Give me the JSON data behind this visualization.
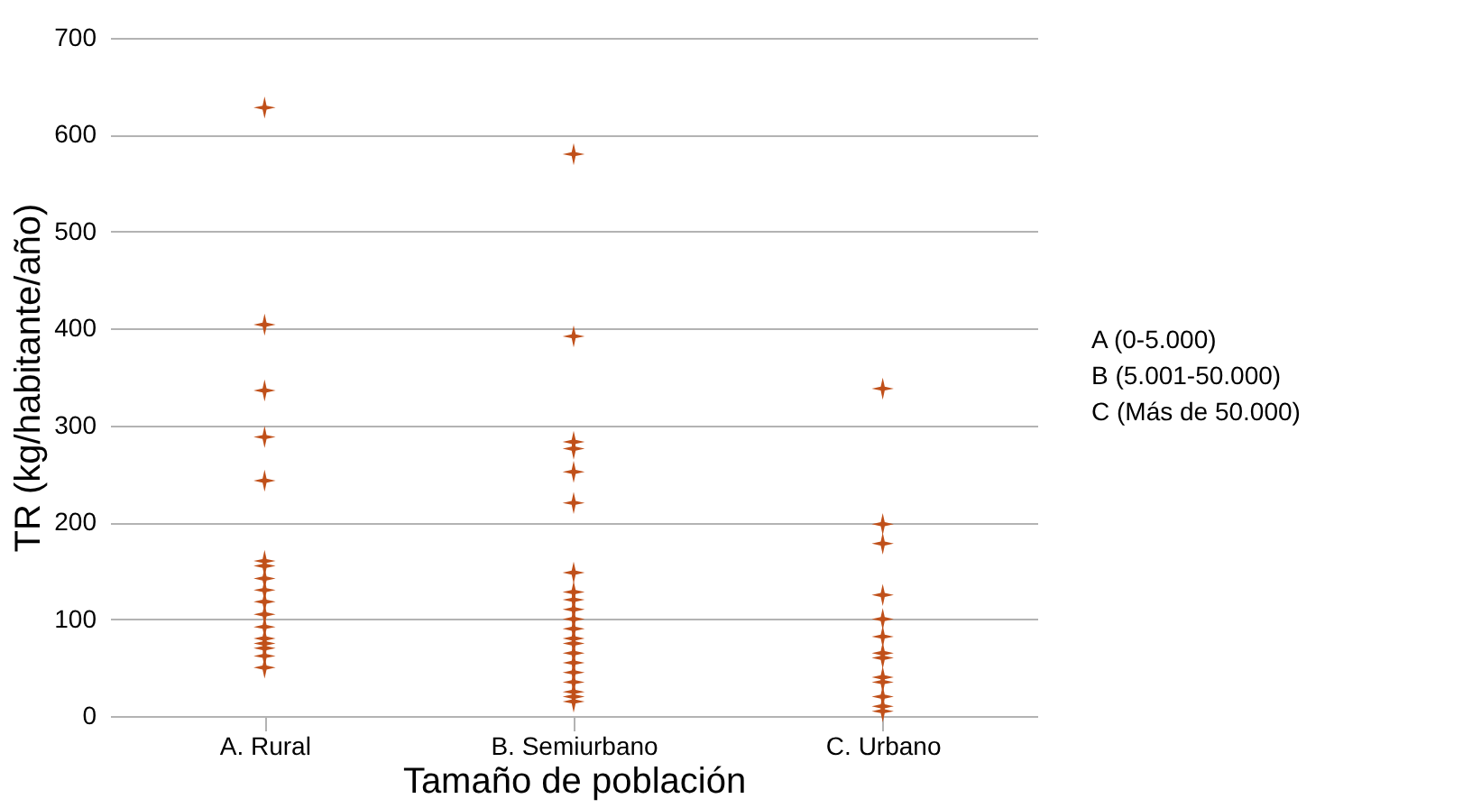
{
  "chart_data": {
    "type": "scatter",
    "xlabel": "Tamaño de población",
    "ylabel": "TR (kg/habitante/año)",
    "categories": [
      "A. Rural",
      "B. Semiurbano",
      "C. Urbano"
    ],
    "series": [
      {
        "color": "#c0501a",
        "x": [
          "A. Rural",
          "A. Rural",
          "A. Rural",
          "A. Rural",
          "A. Rural",
          "A. Rural",
          "A. Rural",
          "A. Rural",
          "A. Rural",
          "A. Rural",
          "A. Rural",
          "A. Rural",
          "A. Rural",
          "A. Rural",
          "A. Rural",
          "A. Rural",
          "A. Rural"
        ],
        "values": [
          628,
          404,
          336,
          288,
          243,
          160,
          155,
          142,
          130,
          118,
          105,
          92,
          80,
          75,
          70,
          62,
          50
        ]
      },
      {
        "color": "#c0501a",
        "x": [
          "B. Semiurbano",
          "B. Semiurbano",
          "B. Semiurbano",
          "B. Semiurbano",
          "B. Semiurbano",
          "B. Semiurbano",
          "B. Semiurbano",
          "B. Semiurbano",
          "B. Semiurbano",
          "B. Semiurbano",
          "B. Semiurbano",
          "B. Semiurbano",
          "B. Semiurbano",
          "B. Semiurbano",
          "B. Semiurbano",
          "B. Semiurbano",
          "B. Semiurbano",
          "B. Semiurbano",
          "B. Semiurbano",
          "B. Semiurbano",
          "B. Semiurbano"
        ],
        "values": [
          580,
          392,
          283,
          276,
          252,
          220,
          148,
          128,
          120,
          110,
          100,
          90,
          80,
          75,
          65,
          55,
          45,
          35,
          25,
          20,
          15
        ]
      },
      {
        "color": "#c0501a",
        "x": [
          "C. Urbano",
          "C. Urbano",
          "C. Urbano",
          "C. Urbano",
          "C. Urbano",
          "C. Urbano",
          "C. Urbano",
          "C. Urbano",
          "C. Urbano",
          "C. Urbano",
          "C. Urbano",
          "C. Urbano",
          "C. Urbano"
        ],
        "values": [
          338,
          198,
          178,
          125,
          100,
          82,
          65,
          60,
          40,
          35,
          20,
          10,
          5
        ]
      }
    ],
    "ylim": [
      0,
      700
    ],
    "yticks": [
      0,
      100,
      200,
      300,
      400,
      500,
      600,
      700
    ],
    "grid": "y",
    "marker": "star",
    "annotations": [
      "A (0-5.000)",
      "B (5.001-50.000)",
      "C (Más de 50.000)"
    ]
  }
}
